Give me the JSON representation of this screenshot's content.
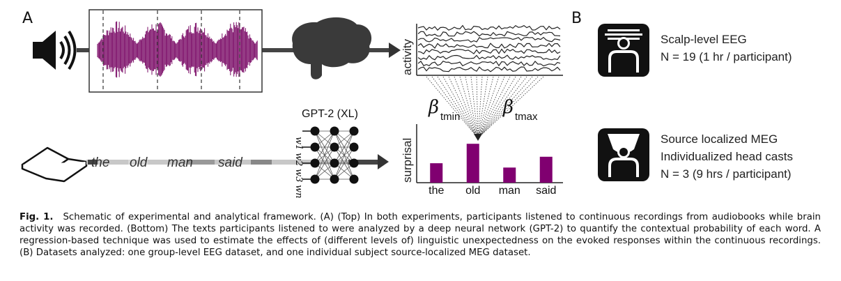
{
  "panels": {
    "a": "A",
    "b": "B"
  },
  "gpt_label": "GPT-2 (XL)",
  "tokens": [
    "w1",
    "w2",
    "w3",
    "wn"
  ],
  "sentence": [
    "the",
    "old",
    "man",
    "said"
  ],
  "activity_label": "activity",
  "surprisal_label": "surprisal",
  "beta_min": "β",
  "beta_min_sub": "tmin",
  "beta_max": "β",
  "beta_max_sub": "tmax",
  "chart_data": {
    "type": "bar",
    "categories": [
      "the",
      "old",
      "man",
      "said"
    ],
    "values": [
      0.45,
      0.9,
      0.35,
      0.6
    ],
    "ylabel": "surprisal",
    "color": "#800070"
  },
  "datasets": {
    "eeg": {
      "title": "Scalp-level EEG",
      "detail": "N = 19 (1 hr / participant)"
    },
    "meg": {
      "title": "Source localized MEG",
      "detail": "Individualized head casts",
      "detail2": "N = 3 (9 hrs / participant)"
    }
  },
  "caption": {
    "label": "Fig. 1.",
    "text": "Schematic of experimental and analytical framework. (A) (Top) In both experiments, participants listened to continuous recordings from audiobooks while brain activity was recorded. (Bottom) The texts participants listened to were analyzed by a deep neural network (GPT-2) to quantify the contextual probability of each word. A regression-based technique was used to estimate the effects of (different levels of) linguistic unexpectedness on the evoked responses within the continuous recordings. (B) Datasets analyzed: one group-level EEG dataset, and one individual subject source-localized MEG dataset."
  },
  "colors": {
    "waveform": "#7a0a66",
    "bar": "#800070",
    "arrow": "#444444"
  }
}
